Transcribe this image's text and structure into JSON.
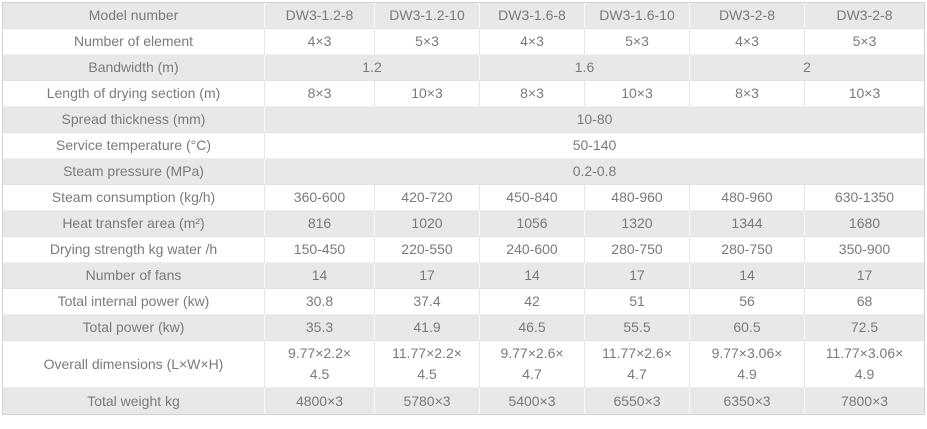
{
  "table": {
    "description": "DW3 mesh belt dryer technical specification table",
    "label_column_header": "Model number",
    "models": [
      "DW3-1.2-8",
      "DW3-1.2-10",
      "DW3-1.6-8",
      "DW3-1.6-10",
      "DW3-2-8",
      "DW3-2-8"
    ],
    "rows": [
      {
        "label": "Model number",
        "cells": [
          "DW3-1.2-8",
          "DW3-1.2-10",
          "DW3-1.6-8",
          "DW3-1.6-10",
          "DW3-2-8",
          "DW3-2-8"
        ]
      },
      {
        "label": "Number of element",
        "cells": [
          "4×3",
          "5×3",
          "4×3",
          "5×3",
          "4×3",
          "5×3"
        ]
      },
      {
        "label": "Bandwidth (m)",
        "cells": [
          {
            "text": "1.2",
            "span": 2
          },
          {
            "text": "1.6",
            "span": 2
          },
          {
            "text": "2",
            "span": 2
          }
        ]
      },
      {
        "label": "Length of drying section (m)",
        "cells": [
          "8×3",
          "10×3",
          "8×3",
          "10×3",
          "8×3",
          "10×3"
        ]
      },
      {
        "label": "Spread thickness (mm)",
        "cells": [
          {
            "text": "10-80",
            "span": 6
          }
        ]
      },
      {
        "label": "Service temperature (°C)",
        "cells": [
          {
            "text": "50-140",
            "span": 6
          }
        ]
      },
      {
        "label": "Steam pressure (MPa)",
        "cells": [
          {
            "text": "0.2-0.8",
            "span": 6
          }
        ]
      },
      {
        "label": "Steam consumption (kg/h)",
        "cells": [
          "360-600",
          "420-720",
          "450-840",
          "480-960",
          "480-960",
          "630-1350"
        ]
      },
      {
        "label": "Heat transfer area (m²)",
        "cells": [
          "816",
          "1020",
          "1056",
          "1320",
          "1344",
          "1680"
        ]
      },
      {
        "label": "Drying strength kg water /h",
        "cells": [
          "150-450",
          "220-550",
          "240-600",
          "280-750",
          "280-750",
          "350-900"
        ]
      },
      {
        "label": "Number of fans",
        "cells": [
          "14",
          "17",
          "14",
          "17",
          "14",
          "17"
        ]
      },
      {
        "label": "Total internal power (kw)",
        "cells": [
          "30.8",
          "37.4",
          "42",
          "51",
          "56",
          "68"
        ]
      },
      {
        "label": "Total power (kw)",
        "cells": [
          "35.3",
          "41.9",
          "46.5",
          "55.5",
          "60.5",
          "72.5"
        ]
      },
      {
        "label": "Overall dimensions (L×W×H)",
        "cells": [
          "9.77×2.2×\n4.5",
          "11.77×2.2×\n4.5",
          "9.77×2.6×\n4.7",
          "11.77×2.6×\n4.7",
          "9.77×3.06×\n4.9",
          "11.77×3.06×\n4.9"
        ]
      },
      {
        "label": "Total weight kg",
        "cells": [
          "4800×3",
          "5780×3",
          "5400×3",
          "6550×3",
          "6350×3",
          "7800×3"
        ]
      }
    ],
    "colors": {
      "stripe_gray": "#e8e8e8",
      "stripe_white": "#ffffff",
      "text": "#7a7a7a",
      "outer_border": "#d2d2d2",
      "inner_border_on_white": "#e4e4e4",
      "inner_border_on_gray": "#fafafa"
    }
  }
}
